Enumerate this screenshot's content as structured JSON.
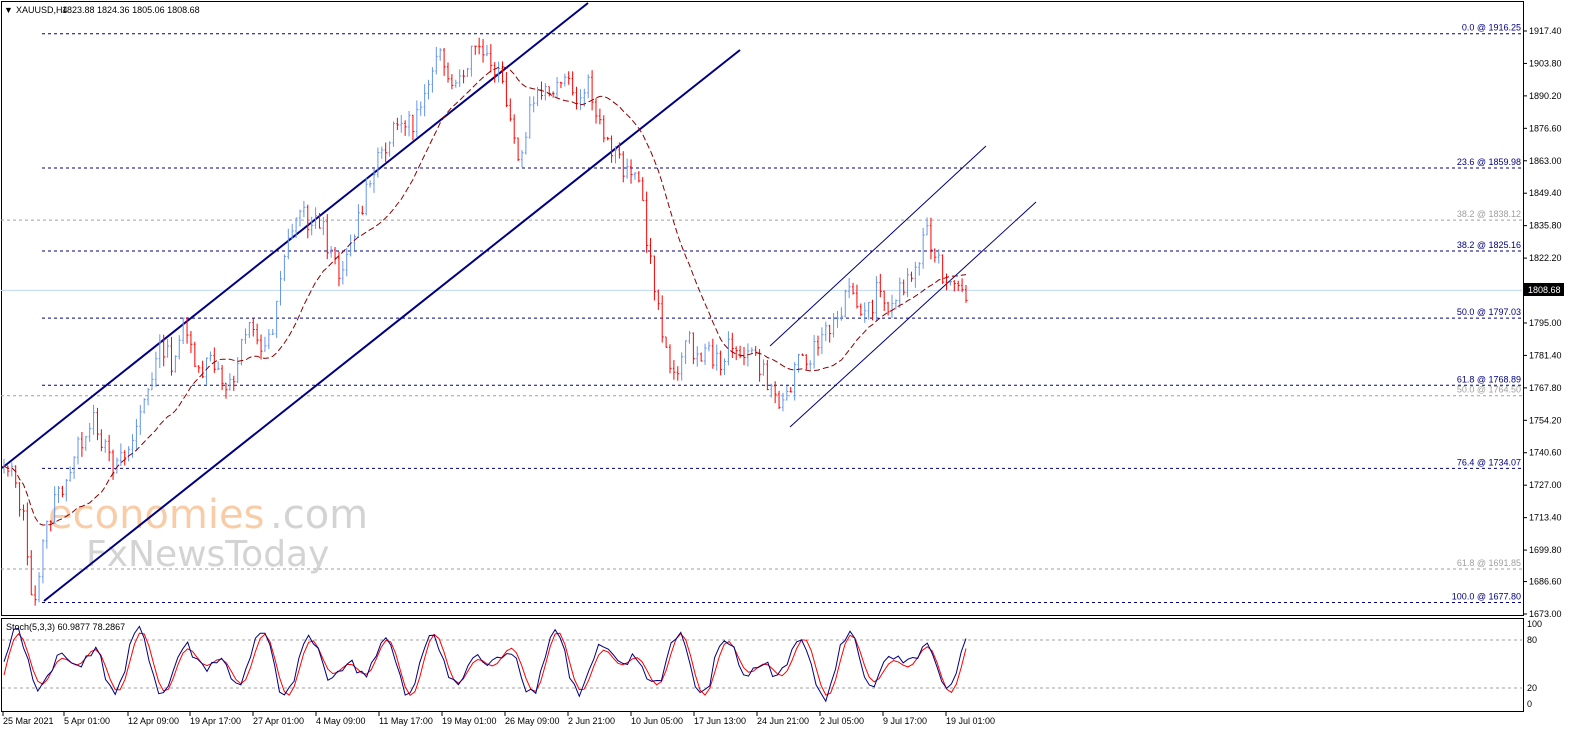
{
  "header": {
    "symbol": "XAUUSD,H4",
    "ohlc": "1823.88 1824.36 1805.06 1808.68"
  },
  "watermark": {
    "line1_a": "economies",
    "line1_b": ".com",
    "line2": "FxNewsToday"
  },
  "price_axis": {
    "ticks": [
      "1917.40",
      "1903.80",
      "1890.20",
      "1876.60",
      "1863.00",
      "1849.40",
      "1835.80",
      "1822.20",
      "1808.68",
      "1795.00",
      "1781.40",
      "1767.80",
      "1754.20",
      "1740.60",
      "1727.00",
      "1713.40",
      "1699.80",
      "1686.60",
      "1673.00"
    ],
    "current_price": "1808.68",
    "current_price_value": 1808.68
  },
  "time_axis": {
    "labels": [
      "25 Mar 2021",
      "5 Apr 01:00",
      "12 Apr 09:00",
      "19 Apr 17:00",
      "27 Apr 01:00",
      "4 May 09:00",
      "11 May 17:00",
      "19 May 01:00",
      "26 May 09:00",
      "2 Jun 21:00",
      "10 Jun 05:00",
      "17 Jun 13:00",
      "24 Jun 21:00",
      "2 Jul 05:00",
      "9 Jul 17:00",
      "19 Jul 01:00"
    ]
  },
  "fib_levels": [
    {
      "label": "0.0 @ 1916.25",
      "value": 1916.25,
      "style": "blue"
    },
    {
      "label": "23.6 @ 1859.98",
      "value": 1859.98,
      "style": "blue"
    },
    {
      "label": "38.2 @ 1838.12",
      "value": 1838.12,
      "style": "gray"
    },
    {
      "label": "38.2 @ 1825.16",
      "value": 1825.16,
      "style": "blue"
    },
    {
      "label": "50.0 @ 1797.03",
      "value": 1797.03,
      "style": "blue"
    },
    {
      "label": "61.8 @ 1768.89",
      "value": 1768.89,
      "style": "blue"
    },
    {
      "label": "50.0 @ 1764.50",
      "value": 1764.5,
      "style": "gray"
    },
    {
      "label": "76.4 @ 1734.07",
      "value": 1734.07,
      "style": "blue"
    },
    {
      "label": "61.8 @ 1691.85",
      "value": 1691.85,
      "style": "gray"
    },
    {
      "label": "100.0 @ 1677.80",
      "value": 1677.8,
      "style": "blue"
    }
  ],
  "stochastic": {
    "label": "Stoch(5,3,3) 60.9877 78.2867",
    "ticks": [
      "100",
      "80",
      "20",
      "0"
    ],
    "levels": [
      80,
      20
    ]
  },
  "colors": {
    "bull": "#6495ed",
    "bear": "#ff0000",
    "channel": "#000080",
    "fib_blue": "#000080",
    "fib_gray": "#a0a0a0",
    "ma": "#8b0000",
    "stoch_main": "#000080",
    "stoch_signal": "#ff0000",
    "wm_orange": "#f4a460",
    "wm_gray": "#b0b0b0"
  },
  "chart_data": {
    "type": "candlestick",
    "instrument": "XAUUSD",
    "timeframe": "H4",
    "ylim": [
      1673.0,
      1924.0
    ],
    "price_path": [
      [
        "25 Mar 2021",
        1733
      ],
      [
        "",
        1731
      ],
      [
        "",
        1712
      ],
      [
        "",
        1676
      ],
      [
        "",
        1703
      ],
      [
        "",
        1720
      ],
      [
        "5 Apr 01:00",
        1728
      ],
      [
        "",
        1737
      ],
      [
        "",
        1748
      ],
      [
        "",
        1758
      ],
      [
        "",
        1744
      ],
      [
        "12 Apr 09:00",
        1733
      ],
      [
        "",
        1738
      ],
      [
        "",
        1745
      ],
      [
        "",
        1762
      ],
      [
        "",
        1775
      ],
      [
        "",
        1786
      ],
      [
        "19 Apr 17:00",
        1778
      ],
      [
        "",
        1794
      ],
      [
        "",
        1783
      ],
      [
        "",
        1776
      ],
      [
        "27 Apr 01:00",
        1781
      ],
      [
        "",
        1772
      ],
      [
        "",
        1768
      ],
      [
        "",
        1785
      ],
      [
        "",
        1795
      ],
      [
        "4 May 09:00",
        1784
      ],
      [
        "",
        1788
      ],
      [
        "",
        1815
      ],
      [
        "",
        1836
      ],
      [
        "",
        1843
      ],
      [
        "",
        1834
      ],
      [
        "",
        1839
      ],
      [
        "11 May 17:00",
        1822
      ],
      [
        "",
        1812
      ],
      [
        "",
        1828
      ],
      [
        "",
        1843
      ],
      [
        "",
        1858
      ],
      [
        "",
        1868
      ],
      [
        "19 May 01:00",
        1872
      ],
      [
        "",
        1880
      ],
      [
        "",
        1878
      ],
      [
        "",
        1885
      ],
      [
        "",
        1895
      ],
      [
        "",
        1908
      ],
      [
        "",
        1899
      ],
      [
        "26 May 09:00",
        1898
      ],
      [
        "",
        1908
      ],
      [
        "",
        1913
      ],
      [
        "",
        1905
      ],
      [
        "",
        1900
      ],
      [
        "",
        1885
      ],
      [
        "",
        1860
      ],
      [
        "2 Jun 21:00",
        1885
      ],
      [
        "",
        1895
      ],
      [
        "",
        1890
      ],
      [
        "",
        1900
      ],
      [
        "",
        1898
      ],
      [
        "",
        1888
      ],
      [
        "",
        1897
      ],
      [
        "",
        1880
      ],
      [
        "10 Jun 05:00",
        1868
      ],
      [
        "",
        1863
      ],
      [
        "",
        1855
      ],
      [
        "",
        1858
      ],
      [
        "",
        1825
      ],
      [
        "",
        1799
      ],
      [
        "",
        1775
      ],
      [
        "17 Jun 13:00",
        1778
      ],
      [
        "",
        1787
      ],
      [
        "",
        1781
      ],
      [
        "",
        1783
      ],
      [
        "",
        1778
      ],
      [
        "",
        1784
      ],
      [
        "",
        1781
      ],
      [
        "",
        1786
      ],
      [
        "",
        1779
      ],
      [
        "24 Jun 21:00",
        1771
      ],
      [
        "",
        1760
      ],
      [
        "",
        1765
      ],
      [
        "",
        1777
      ],
      [
        "",
        1779
      ],
      [
        "2 Jul 05:00",
        1786
      ],
      [
        "",
        1794
      ],
      [
        "",
        1797
      ],
      [
        "",
        1808
      ],
      [
        "",
        1803
      ],
      [
        "",
        1798
      ],
      [
        "",
        1808
      ],
      [
        "",
        1801
      ],
      [
        "9 Jul 17:00",
        1806
      ],
      [
        "",
        1812
      ],
      [
        "",
        1818
      ],
      [
        "",
        1832
      ],
      [
        "",
        1824
      ],
      [
        "",
        1812
      ],
      [
        "19 Jul 01:00",
        1815
      ],
      [
        "",
        1808.68
      ]
    ]
  }
}
